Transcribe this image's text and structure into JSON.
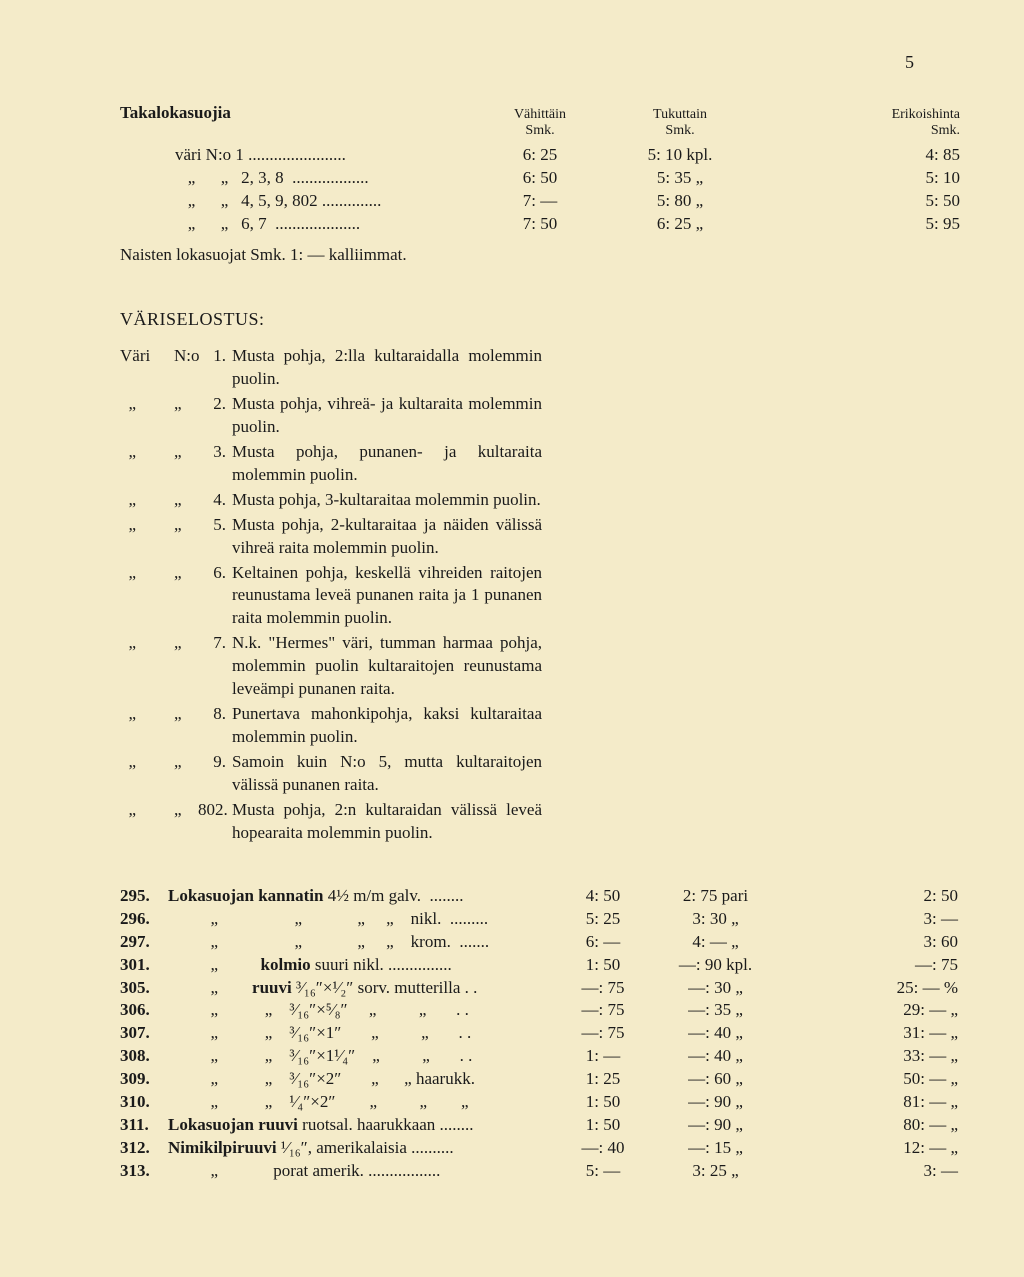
{
  "page_number": "5",
  "colors": {
    "background": "#f4ebc9",
    "text": "#1a1a1a"
  },
  "top": {
    "title": "Takalokasuojia",
    "headers": {
      "vahittain_1": "Vähittäin",
      "vahittain_2": "Smk.",
      "tukuttain_1": "Tukuttain",
      "tukuttain_2": "Smk.",
      "erikoishinta_1": "Erikoishinta",
      "erikoishinta_2": "Smk."
    },
    "rows": [
      {
        "desc": "väri N:o 1 .......................",
        "v": "6: 25",
        "t": "5: 10 kpl.",
        "e": "4: 85"
      },
      {
        "desc": "   „      „   2, 3, 8  ..................",
        "v": "6: 50",
        "t": "5: 35   „",
        "e": "5: 10"
      },
      {
        "desc": "   „      „   4, 5, 9, 802 ..............",
        "v": "7: —",
        "t": "5: 80   „",
        "e": "5: 50"
      },
      {
        "desc": "   „      „   6, 7  ....................",
        "v": "7: 50",
        "t": "6: 25   „",
        "e": "5: 95"
      }
    ],
    "note": "Naisten lokasuojat Smk. 1: — kalliimmat."
  },
  "variselostus": {
    "title": "VÄRISELOSTUS:",
    "lead": "Väri N:o",
    "items": [
      {
        "no": "1.",
        "lead": "Väri N:o",
        "text": "Musta pohja, 2:lla kultaraidalla molemmin puolin."
      },
      {
        "no": "2.",
        "lead": "  „      „",
        "text": "Musta pohja, vihreä- ja kultaraita molemmin puolin."
      },
      {
        "no": "3.",
        "lead": "  „      „",
        "text": "Musta pohja, punanen- ja kultaraita molemmin puolin."
      },
      {
        "no": "4.",
        "lead": "  „      „",
        "text": "Musta pohja, 3-kultaraitaa molemmin puolin."
      },
      {
        "no": "5.",
        "lead": "  „      „",
        "text": "Musta pohja, 2-kultaraitaa ja näiden välissä vihreä raita molemmin puolin."
      },
      {
        "no": "6.",
        "lead": "  „      „",
        "text": "Keltainen pohja, keskellä vihreiden raitojen reunustama leveä punanen raita ja 1 punanen raita molemmin puolin."
      },
      {
        "no": "7.",
        "lead": "  „      „",
        "text": "N.k. \"Hermes\" väri, tumman harmaa pohja, molemmin puolin kultaraitojen reunustama leveämpi punanen raita."
      },
      {
        "no": "8.",
        "lead": "  „      „",
        "text": "Punertava mahonkipohja, kaksi kultaraitaa molemmin puolin."
      },
      {
        "no": "9.",
        "lead": "  „      „",
        "text": "Samoin kuin N:o 5, mutta kultaraitojen välissä punanen raita."
      },
      {
        "no": "802.",
        "lead": "  „      „",
        "text": "Musta pohja, 2:n kultaraidan välissä leveä hopearaita molemmin puolin."
      }
    ]
  },
  "bottom": {
    "rows": [
      {
        "n": "295.",
        "d": "Lokasuojan kannatin 4½ m/m galv.  ........",
        "v": "4: 50",
        "t": "2: 75 pari",
        "e": "2: 50"
      },
      {
        "n": "296.",
        "d": "          „                  „             „     „    nikl.  .........",
        "v": "5: 25",
        "t": "3: 30   „",
        "e": "3: —"
      },
      {
        "n": "297.",
        "d": "          „                  „             „     „    krom.  .......",
        "v": "6: —",
        "t": "4: —   „",
        "e": "3: 60"
      },
      {
        "n": "301.",
        "d": "          „          kolmio suuri nikl. ...............",
        "v": "1: 50",
        "t": "—: 90 kpl.",
        "e": "—: 75"
      },
      {
        "n": "305.",
        "d": "          „        ruuvi ³⁄₁₆″×¹⁄₂″ sorv. mutterilla . .",
        "v": "—: 75",
        "t": "—: 30   „",
        "e": "25: — %"
      },
      {
        "n": "306.",
        "d": "          „           „    ³⁄₁₆″×⁵⁄₈″     „          „       . .",
        "v": "—: 75",
        "t": "—: 35   „",
        "e": "29: —  „"
      },
      {
        "n": "307.",
        "d": "          „           „    ³⁄₁₆″×1″       „          „       . .",
        "v": "—: 75",
        "t": "—: 40   „",
        "e": "31: —  „"
      },
      {
        "n": "308.",
        "d": "          „           „    ³⁄₁₆″×1¹⁄₄″    „          „       . .",
        "v": "1: —",
        "t": "—: 40   „",
        "e": "33: —  „"
      },
      {
        "n": "309.",
        "d": "          „           „    ³⁄₁₆″×2″       „      „ haarukk.",
        "v": "1: 25",
        "t": "—: 60   „",
        "e": "50: —  „"
      },
      {
        "n": "310.",
        "d": "          „           „    ¹⁄₄″×2″        „          „        „",
        "v": "1: 50",
        "t": "—: 90   „",
        "e": "81: —  „"
      },
      {
        "n": "311.",
        "d": "Lokasuojan ruuvi ruotsal. haarukkaan ........",
        "v": "1: 50",
        "t": "—: 90   „",
        "e": "80: —  „"
      },
      {
        "n": "312.",
        "d": "Nimikilpiruuvi ¹⁄₁₆″, amerikalaisia ..........",
        "v": "—: 40",
        "t": "—: 15   „",
        "e": "12: —  „"
      },
      {
        "n": "313.",
        "d": "          „             porat amerik. .................",
        "v": "5: —",
        "t": "3: 25   „",
        "e": "3: —"
      }
    ]
  }
}
